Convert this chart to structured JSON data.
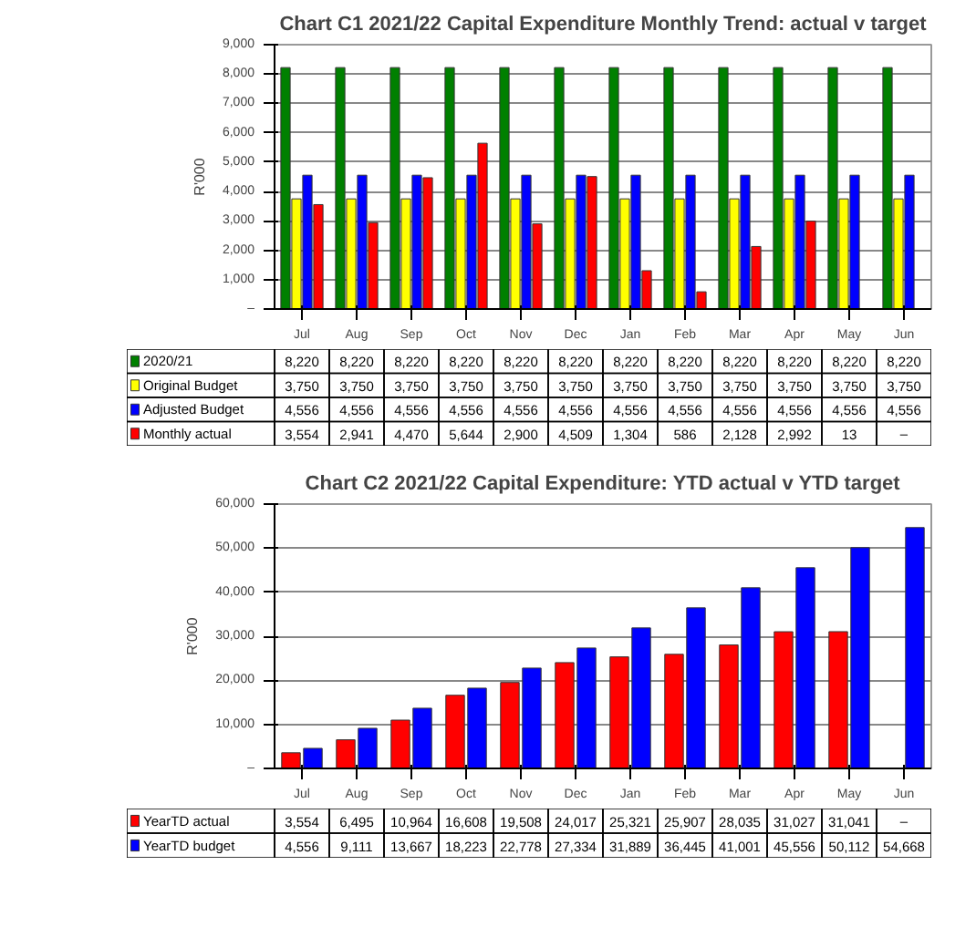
{
  "chart_data": [
    {
      "type": "bar",
      "title": "Chart C1 2021/22 Capital Expenditure Monthly Trend: actual v target",
      "ylabel": "R'000",
      "categories": [
        "Jul",
        "Aug",
        "Sep",
        "Oct",
        "Nov",
        "Dec",
        "Jan",
        "Feb",
        "Mar",
        "Apr",
        "May",
        "Jun"
      ],
      "ylim": [
        0,
        9000
      ],
      "yticks": [
        {
          "value": 0,
          "label": "–"
        },
        {
          "value": 1000,
          "label": "1,000"
        },
        {
          "value": 2000,
          "label": "2,000"
        },
        {
          "value": 3000,
          "label": "3,000"
        },
        {
          "value": 4000,
          "label": "4,000"
        },
        {
          "value": 5000,
          "label": "5,000"
        },
        {
          "value": 6000,
          "label": "6,000"
        },
        {
          "value": 7000,
          "label": "7,000"
        },
        {
          "value": 8000,
          "label": "8,000"
        },
        {
          "value": 9000,
          "label": "9,000"
        }
      ],
      "grid": "y",
      "legend": "bottom",
      "data_labels": true,
      "series": [
        {
          "name": "2020/21",
          "color": "#008000",
          "values": [
            8220,
            8220,
            8220,
            8220,
            8220,
            8220,
            8220,
            8220,
            8220,
            8220,
            8220,
            8220
          ],
          "value_labels": [
            "8,220",
            "8,220",
            "8,220",
            "8,220",
            "8,220",
            "8,220",
            "8,220",
            "8,220",
            "8,220",
            "8,220",
            "8,220",
            "8,220"
          ]
        },
        {
          "name": "Original Budget",
          "color": "#ffff00",
          "values": [
            3750,
            3750,
            3750,
            3750,
            3750,
            3750,
            3750,
            3750,
            3750,
            3750,
            3750,
            3750
          ],
          "value_labels": [
            "3,750",
            "3,750",
            "3,750",
            "3,750",
            "3,750",
            "3,750",
            "3,750",
            "3,750",
            "3,750",
            "3,750",
            "3,750",
            "3,750"
          ]
        },
        {
          "name": "Adjusted Budget",
          "color": "#0000ff",
          "values": [
            4556,
            4556,
            4556,
            4556,
            4556,
            4556,
            4556,
            4556,
            4556,
            4556,
            4556,
            4556
          ],
          "value_labels": [
            "4,556",
            "4,556",
            "4,556",
            "4,556",
            "4,556",
            "4,556",
            "4,556",
            "4,556",
            "4,556",
            "4,556",
            "4,556",
            "4,556"
          ]
        },
        {
          "name": "Monthly actual",
          "color": "#ff0000",
          "values": [
            3554,
            2941,
            4470,
            5644,
            2900,
            4509,
            1304,
            586,
            2128,
            2992,
            13,
            null
          ],
          "value_labels": [
            "3,554",
            "2,941",
            "4,470",
            "5,644",
            "2,900",
            "4,509",
            "1,304",
            "586",
            "2,128",
            "2,992",
            "13",
            "–"
          ]
        }
      ]
    },
    {
      "type": "bar",
      "title": "Chart C2 2021/22 Capital Expenditure: YTD actual v YTD target",
      "ylabel": "R'000",
      "categories": [
        "Jul",
        "Aug",
        "Sep",
        "Oct",
        "Nov",
        "Dec",
        "Jan",
        "Feb",
        "Mar",
        "Apr",
        "May",
        "Jun"
      ],
      "ylim": [
        0,
        60000
      ],
      "yticks": [
        {
          "value": 0,
          "label": "–"
        },
        {
          "value": 10000,
          "label": "10,000"
        },
        {
          "value": 20000,
          "label": "20,000"
        },
        {
          "value": 30000,
          "label": "30,000"
        },
        {
          "value": 40000,
          "label": "40,000"
        },
        {
          "value": 50000,
          "label": "50,000"
        },
        {
          "value": 60000,
          "label": "60,000"
        }
      ],
      "grid": "y",
      "legend": "bottom",
      "data_labels": true,
      "series": [
        {
          "name": "YearTD actual",
          "color": "#ff0000",
          "values": [
            3554,
            6495,
            10964,
            16608,
            19508,
            24017,
            25321,
            25907,
            28035,
            31027,
            31041,
            null
          ],
          "value_labels": [
            "3,554",
            "6,495",
            "10,964",
            "16,608",
            "19,508",
            "24,017",
            "25,321",
            "25,907",
            "28,035",
            "31,027",
            "31,041",
            "–"
          ]
        },
        {
          "name": "YearTD budget",
          "color": "#0000ff",
          "values": [
            4556,
            9111,
            13667,
            18223,
            22778,
            27334,
            31889,
            36445,
            41001,
            45556,
            50112,
            54668
          ],
          "value_labels": [
            "4,556",
            "9,111",
            "13,667",
            "18,223",
            "22,778",
            "27,334",
            "31,889",
            "36,445",
            "41,001",
            "45,556",
            "50,112",
            "54,668"
          ]
        }
      ]
    }
  ]
}
